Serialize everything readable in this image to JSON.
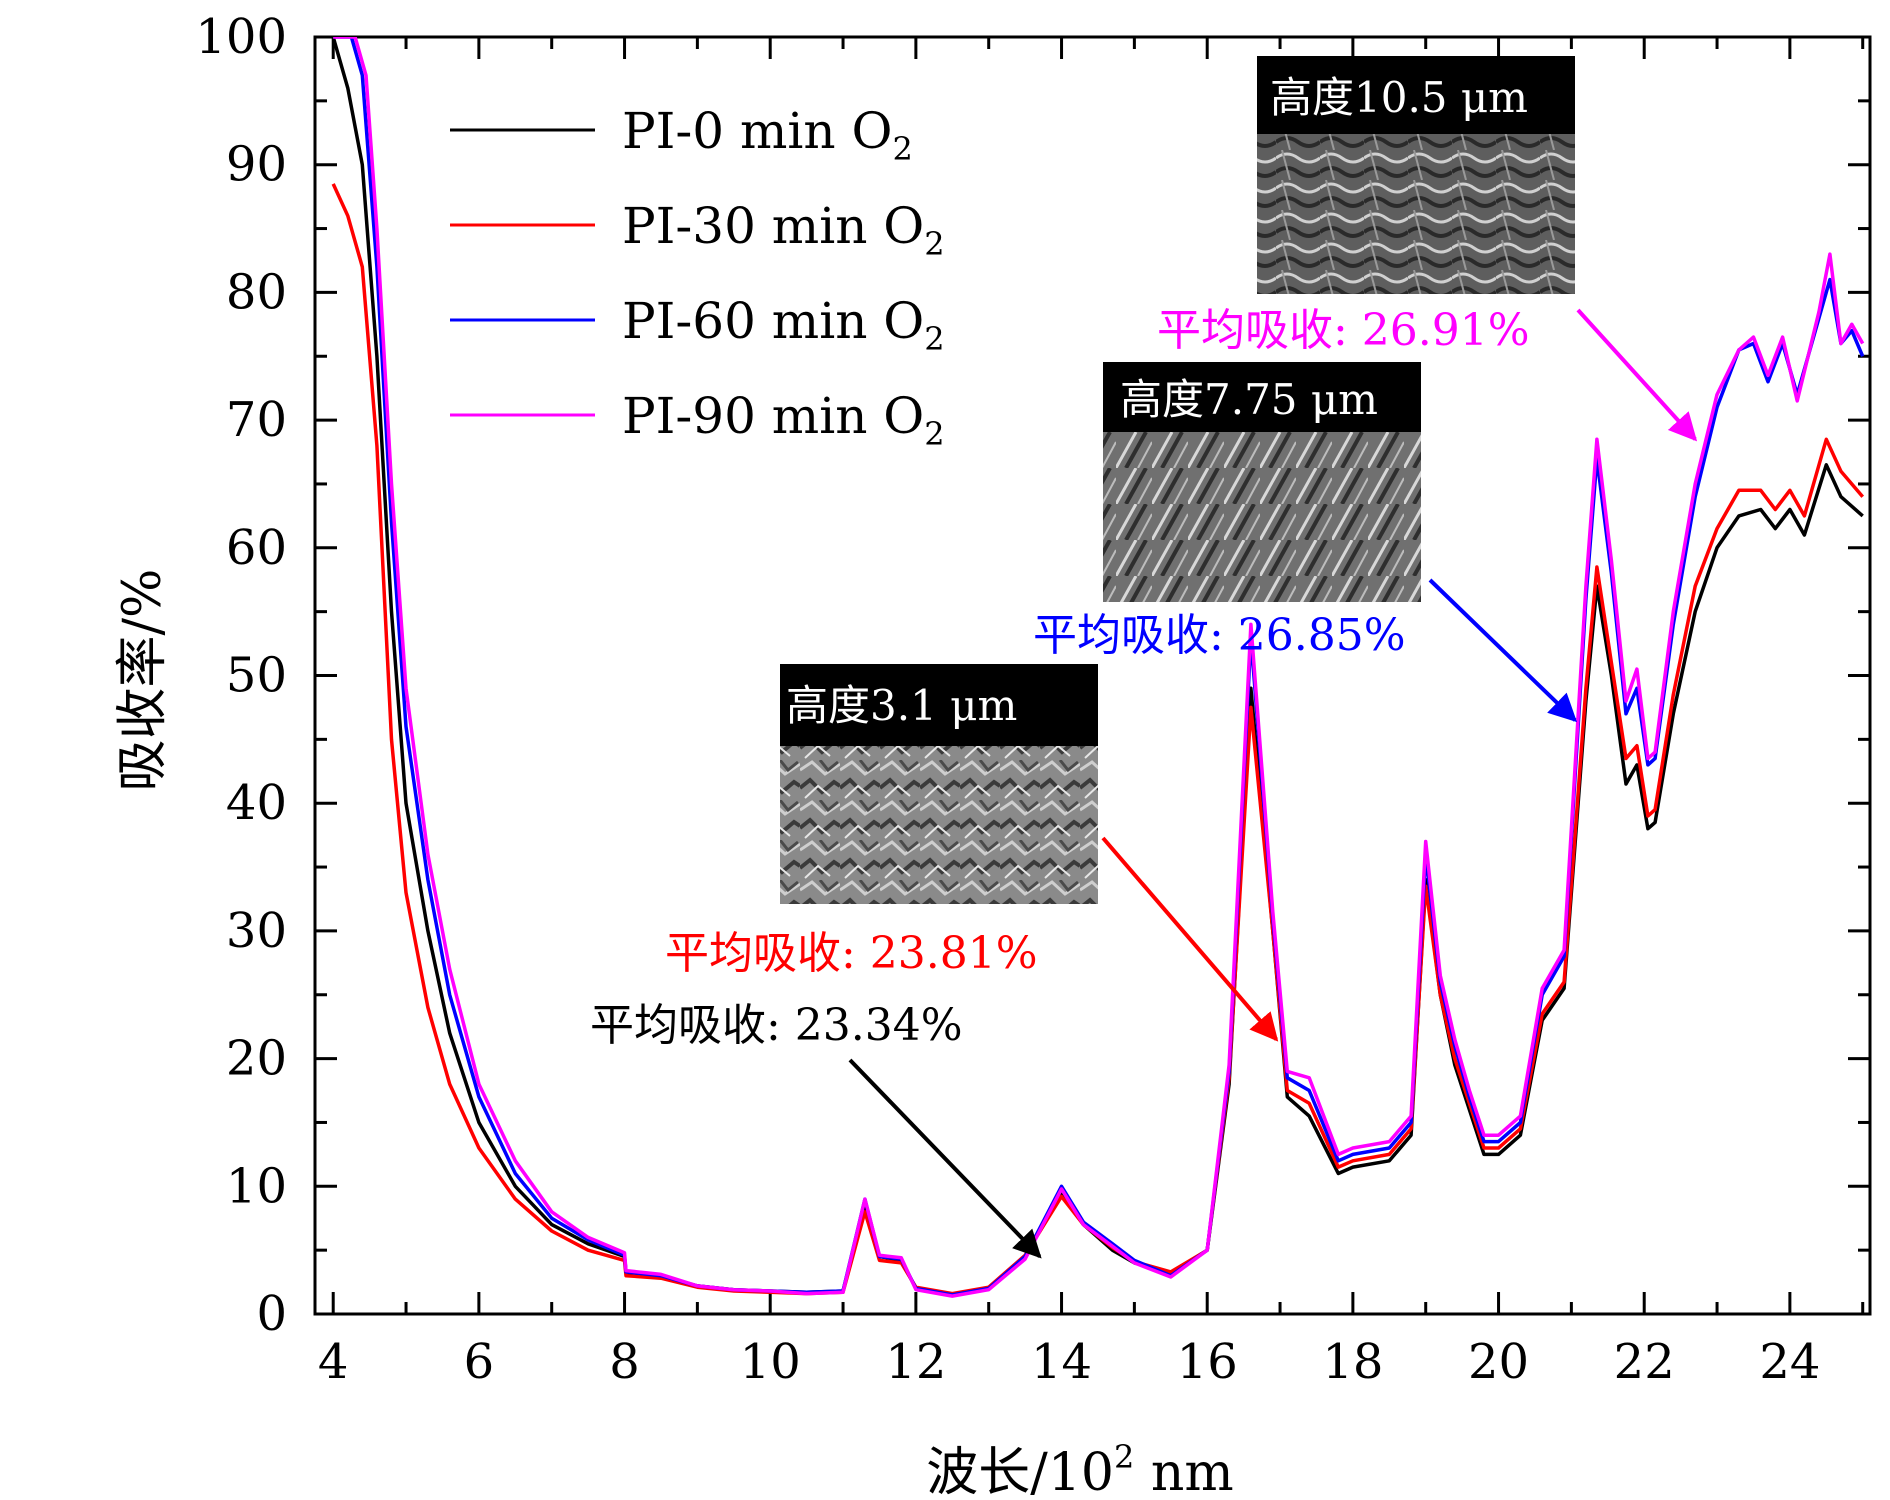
{
  "chart_data": {
    "type": "line",
    "xlabel_main": "波长/10",
    "xlabel_sup": "2",
    "xlabel_unit": " nm",
    "ylabel": "吸收率/%",
    "xlim": [
      3.75,
      25.1
    ],
    "ylim": [
      0,
      100
    ],
    "x_ticks": [
      4,
      6,
      8,
      10,
      12,
      14,
      16,
      18,
      20,
      22,
      24
    ],
    "y_ticks": [
      0,
      10,
      20,
      30,
      40,
      50,
      60,
      70,
      80,
      90,
      100
    ],
    "legend": {
      "position": "top-left",
      "entries": [
        {
          "label": "PI-0 min O",
          "sub": "2",
          "color": "#000000"
        },
        {
          "label": "PI-30 min O",
          "sub": "2",
          "color": "#ff0000"
        },
        {
          "label": "PI-60 min O",
          "sub": "2",
          "color": "#0000ff"
        },
        {
          "label": "PI-90 min O",
          "sub": "2",
          "color": "#ff00ff"
        }
      ]
    },
    "series": [
      {
        "name": "PI-0 min O2",
        "color": "#000000",
        "points": [
          [
            4.0,
            100
          ],
          [
            4.2,
            96
          ],
          [
            4.4,
            90
          ],
          [
            4.6,
            75
          ],
          [
            4.8,
            55
          ],
          [
            5.0,
            40
          ],
          [
            5.3,
            30
          ],
          [
            5.6,
            22
          ],
          [
            6.0,
            15
          ],
          [
            6.5,
            10
          ],
          [
            7.0,
            7
          ],
          [
            7.5,
            5.5
          ],
          [
            8.0,
            4.5
          ],
          [
            8.02,
            3.2
          ],
          [
            8.5,
            3.0
          ],
          [
            9.0,
            2.2
          ],
          [
            9.5,
            1.9
          ],
          [
            10.0,
            1.8
          ],
          [
            10.5,
            1.7
          ],
          [
            11.0,
            1.8
          ],
          [
            11.3,
            8.5
          ],
          [
            11.5,
            4.5
          ],
          [
            11.8,
            4.2
          ],
          [
            12.0,
            2.0
          ],
          [
            12.5,
            1.5
          ],
          [
            13.0,
            2.0
          ],
          [
            13.5,
            4.5
          ],
          [
            14.0,
            9.5
          ],
          [
            14.3,
            7.0
          ],
          [
            14.7,
            5.0
          ],
          [
            15.0,
            4.0
          ],
          [
            15.5,
            3.2
          ],
          [
            16.0,
            5.0
          ],
          [
            16.3,
            18.0
          ],
          [
            16.6,
            49.0
          ],
          [
            16.9,
            30.0
          ],
          [
            17.1,
            17.0
          ],
          [
            17.4,
            15.5
          ],
          [
            17.8,
            11.0
          ],
          [
            18.0,
            11.5
          ],
          [
            18.5,
            12.0
          ],
          [
            18.8,
            14.0
          ],
          [
            19.0,
            34.0
          ],
          [
            19.2,
            25.0
          ],
          [
            19.4,
            19.5
          ],
          [
            19.6,
            16.0
          ],
          [
            19.8,
            12.5
          ],
          [
            20.0,
            12.5
          ],
          [
            20.3,
            14.0
          ],
          [
            20.6,
            23.0
          ],
          [
            20.9,
            25.5
          ],
          [
            21.2,
            48.0
          ],
          [
            21.35,
            57.0
          ],
          [
            21.55,
            50.0
          ],
          [
            21.75,
            41.5
          ],
          [
            21.9,
            43.0
          ],
          [
            22.05,
            38.0
          ],
          [
            22.15,
            38.5
          ],
          [
            22.4,
            47.0
          ],
          [
            22.7,
            55.0
          ],
          [
            23.0,
            60.0
          ],
          [
            23.3,
            62.5
          ],
          [
            23.6,
            63.0
          ],
          [
            23.8,
            61.5
          ],
          [
            24.0,
            63.0
          ],
          [
            24.2,
            61.0
          ],
          [
            24.5,
            66.5
          ],
          [
            24.7,
            64.0
          ],
          [
            25.0,
            62.5
          ]
        ]
      },
      {
        "name": "PI-30 min O2",
        "color": "#ff0000",
        "points": [
          [
            4.0,
            88.5
          ],
          [
            4.2,
            86
          ],
          [
            4.4,
            82
          ],
          [
            4.6,
            68
          ],
          [
            4.8,
            45
          ],
          [
            5.0,
            33
          ],
          [
            5.3,
            24
          ],
          [
            5.6,
            18
          ],
          [
            6.0,
            13
          ],
          [
            6.5,
            9
          ],
          [
            7.0,
            6.5
          ],
          [
            7.5,
            5
          ],
          [
            8.0,
            4.2
          ],
          [
            8.02,
            3.0
          ],
          [
            8.5,
            2.8
          ],
          [
            9.0,
            2.1
          ],
          [
            9.5,
            1.8
          ],
          [
            10.0,
            1.7
          ],
          [
            10.5,
            1.6
          ],
          [
            11.0,
            1.7
          ],
          [
            11.3,
            8.0
          ],
          [
            11.5,
            4.2
          ],
          [
            11.8,
            4.0
          ],
          [
            12.0,
            2.1
          ],
          [
            12.5,
            1.6
          ],
          [
            13.0,
            2.1
          ],
          [
            13.5,
            4.6
          ],
          [
            14.0,
            9.2
          ],
          [
            14.3,
            7.0
          ],
          [
            14.7,
            5.2
          ],
          [
            15.0,
            4.1
          ],
          [
            15.5,
            3.3
          ],
          [
            16.0,
            5.0
          ],
          [
            16.3,
            18.5
          ],
          [
            16.6,
            47.5
          ],
          [
            16.9,
            30.0
          ],
          [
            17.1,
            17.5
          ],
          [
            17.4,
            16.5
          ],
          [
            17.8,
            11.5
          ],
          [
            18.0,
            12.0
          ],
          [
            18.5,
            12.5
          ],
          [
            18.8,
            14.5
          ],
          [
            19.0,
            33.5
          ],
          [
            19.2,
            25.0
          ],
          [
            19.4,
            20.0
          ],
          [
            19.6,
            16.5
          ],
          [
            19.8,
            13.0
          ],
          [
            20.0,
            13.0
          ],
          [
            20.3,
            14.5
          ],
          [
            20.6,
            23.5
          ],
          [
            20.9,
            26.0
          ],
          [
            21.2,
            49.0
          ],
          [
            21.35,
            58.5
          ],
          [
            21.55,
            51.0
          ],
          [
            21.75,
            43.5
          ],
          [
            21.9,
            44.5
          ],
          [
            22.05,
            39.0
          ],
          [
            22.15,
            39.5
          ],
          [
            22.4,
            48.5
          ],
          [
            22.7,
            57.0
          ],
          [
            23.0,
            61.5
          ],
          [
            23.3,
            64.5
          ],
          [
            23.6,
            64.5
          ],
          [
            23.8,
            63.0
          ],
          [
            24.0,
            64.5
          ],
          [
            24.2,
            62.5
          ],
          [
            24.5,
            68.5
          ],
          [
            24.7,
            66.0
          ],
          [
            25.0,
            64.0
          ]
        ]
      },
      {
        "name": "PI-60 min O2",
        "color": "#0000ff",
        "points": [
          [
            4.0,
            100
          ],
          [
            4.25,
            100
          ],
          [
            4.4,
            97
          ],
          [
            4.6,
            82
          ],
          [
            4.8,
            62
          ],
          [
            5.0,
            46
          ],
          [
            5.3,
            34
          ],
          [
            5.6,
            25
          ],
          [
            6.0,
            17
          ],
          [
            6.5,
            11
          ],
          [
            7.0,
            7.5
          ],
          [
            7.5,
            5.8
          ],
          [
            8.0,
            4.6
          ],
          [
            8.02,
            3.3
          ],
          [
            8.5,
            3.0
          ],
          [
            9.0,
            2.2
          ],
          [
            9.5,
            1.9
          ],
          [
            10.0,
            1.8
          ],
          [
            10.5,
            1.7
          ],
          [
            11.0,
            1.8
          ],
          [
            11.3,
            9.0
          ],
          [
            11.5,
            4.5
          ],
          [
            11.8,
            4.3
          ],
          [
            12.0,
            2.0
          ],
          [
            12.5,
            1.5
          ],
          [
            13.0,
            2.0
          ],
          [
            13.5,
            4.5
          ],
          [
            14.0,
            10.0
          ],
          [
            14.3,
            7.2
          ],
          [
            14.7,
            5.5
          ],
          [
            15.0,
            4.2
          ],
          [
            15.5,
            3.0
          ],
          [
            16.0,
            5.0
          ],
          [
            16.3,
            19.0
          ],
          [
            16.6,
            53.0
          ],
          [
            16.9,
            31.0
          ],
          [
            17.1,
            18.5
          ],
          [
            17.4,
            17.5
          ],
          [
            17.8,
            12.0
          ],
          [
            18.0,
            12.5
          ],
          [
            18.5,
            13.0
          ],
          [
            18.8,
            15.0
          ],
          [
            19.0,
            36.0
          ],
          [
            19.2,
            26.0
          ],
          [
            19.4,
            21.0
          ],
          [
            19.6,
            17.0
          ],
          [
            19.8,
            13.5
          ],
          [
            20.0,
            13.5
          ],
          [
            20.3,
            15.0
          ],
          [
            20.6,
            25.0
          ],
          [
            20.9,
            28.0
          ],
          [
            21.2,
            56.0
          ],
          [
            21.35,
            67.0
          ],
          [
            21.55,
            58.0
          ],
          [
            21.75,
            47.0
          ],
          [
            21.9,
            49.0
          ],
          [
            22.05,
            43.0
          ],
          [
            22.15,
            43.5
          ],
          [
            22.4,
            54.0
          ],
          [
            22.7,
            64.0
          ],
          [
            23.0,
            71.0
          ],
          [
            23.3,
            75.5
          ],
          [
            23.5,
            76.0
          ],
          [
            23.7,
            73.0
          ],
          [
            23.9,
            76.0
          ],
          [
            24.1,
            72.0
          ],
          [
            24.4,
            78.0
          ],
          [
            24.55,
            81.0
          ],
          [
            24.7,
            76.0
          ],
          [
            24.85,
            77.0
          ],
          [
            25.0,
            75.0
          ]
        ]
      },
      {
        "name": "PI-90 min O2",
        "color": "#ff00ff",
        "points": [
          [
            4.0,
            100
          ],
          [
            4.3,
            100
          ],
          [
            4.45,
            97
          ],
          [
            4.6,
            85
          ],
          [
            4.8,
            65
          ],
          [
            5.0,
            49
          ],
          [
            5.3,
            36
          ],
          [
            5.6,
            27
          ],
          [
            6.0,
            18
          ],
          [
            6.5,
            12
          ],
          [
            7.0,
            8
          ],
          [
            7.5,
            6
          ],
          [
            8.0,
            4.8
          ],
          [
            8.02,
            3.4
          ],
          [
            8.5,
            3.1
          ],
          [
            9.0,
            2.2
          ],
          [
            9.5,
            1.9
          ],
          [
            10.0,
            1.8
          ],
          [
            10.5,
            1.6
          ],
          [
            11.0,
            1.7
          ],
          [
            11.3,
            9.0
          ],
          [
            11.5,
            4.6
          ],
          [
            11.8,
            4.4
          ],
          [
            12.0,
            1.9
          ],
          [
            12.5,
            1.4
          ],
          [
            13.0,
            1.9
          ],
          [
            13.5,
            4.3
          ],
          [
            14.0,
            9.8
          ],
          [
            14.3,
            7.0
          ],
          [
            14.7,
            5.3
          ],
          [
            15.0,
            4.0
          ],
          [
            15.5,
            2.9
          ],
          [
            16.0,
            5.0
          ],
          [
            16.3,
            19.5
          ],
          [
            16.6,
            54.0
          ],
          [
            16.9,
            31.5
          ],
          [
            17.1,
            19.0
          ],
          [
            17.4,
            18.5
          ],
          [
            17.8,
            12.5
          ],
          [
            18.0,
            13.0
          ],
          [
            18.5,
            13.5
          ],
          [
            18.8,
            15.5
          ],
          [
            19.0,
            37.0
          ],
          [
            19.2,
            26.5
          ],
          [
            19.4,
            21.5
          ],
          [
            19.6,
            17.5
          ],
          [
            19.8,
            14.0
          ],
          [
            20.0,
            14.0
          ],
          [
            20.3,
            15.5
          ],
          [
            20.6,
            25.5
          ],
          [
            20.9,
            28.5
          ],
          [
            21.2,
            57.0
          ],
          [
            21.35,
            68.5
          ],
          [
            21.55,
            59.0
          ],
          [
            21.75,
            48.0
          ],
          [
            21.9,
            50.5
          ],
          [
            22.05,
            43.5
          ],
          [
            22.15,
            44.0
          ],
          [
            22.4,
            55.0
          ],
          [
            22.7,
            65.0
          ],
          [
            23.0,
            72.0
          ],
          [
            23.3,
            75.5
          ],
          [
            23.5,
            76.5
          ],
          [
            23.7,
            73.5
          ],
          [
            23.9,
            76.5
          ],
          [
            24.1,
            71.5
          ],
          [
            24.4,
            78.5
          ],
          [
            24.55,
            83.0
          ],
          [
            24.7,
            76.0
          ],
          [
            24.85,
            77.5
          ],
          [
            25.0,
            76.0
          ]
        ]
      }
    ],
    "annotations": [
      {
        "text": "平均吸收: 23.34%",
        "color": "#000000",
        "target": [
          13.7,
          4.5
        ]
      },
      {
        "text": "平均吸收: 23.81%",
        "color": "#ff0000",
        "target": [
          16.95,
          21.5
        ]
      },
      {
        "text": "平均吸收: 26.85%",
        "color": "#0000ff",
        "target": [
          21.05,
          46.5
        ]
      },
      {
        "text": "平均吸收: 26.91%",
        "color": "#ff00ff",
        "target": [
          22.7,
          68.5
        ]
      }
    ],
    "insets": [
      {
        "title": "高度3.1 μm",
        "caption_index": 1
      },
      {
        "title": "高度7.75 μm",
        "caption_index": 2
      },
      {
        "title": "高度10.5 μm",
        "caption_index": 3
      }
    ]
  }
}
